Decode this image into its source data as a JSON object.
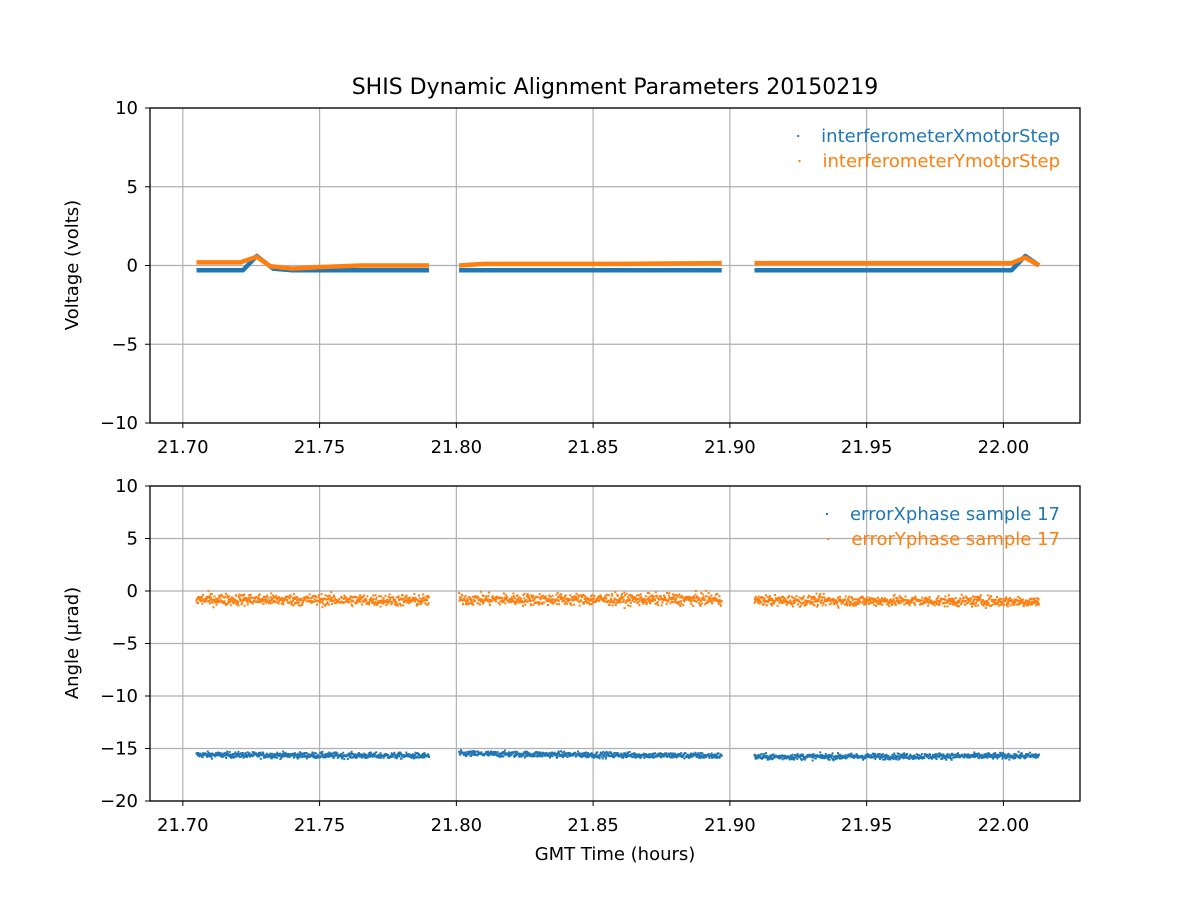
{
  "chart_data": {
    "title": "SHIS Dynamic Alignment Parameters 20150219",
    "subplots": [
      {
        "type": "scatter",
        "ylabel": "Voltage (volts)",
        "xlabel": "",
        "xlim": [
          21.688,
          22.028
        ],
        "ylim": [
          -10,
          10
        ],
        "xticks": [
          21.7,
          21.75,
          21.8,
          21.85,
          21.9,
          21.95,
          22.0
        ],
        "xtick_labels": [
          "21.70",
          "21.75",
          "21.80",
          "21.85",
          "21.90",
          "21.95",
          "22.00"
        ],
        "yticks": [
          10,
          5,
          0,
          -5,
          -10
        ],
        "ytick_labels": [
          "10",
          "5",
          "0",
          "−5",
          "−10"
        ],
        "grid": true,
        "legend_placement": "top-right",
        "series": [
          {
            "name": "interferometerXmotorStep",
            "color": "#1f77b4",
            "segments": [
              {
                "x": [
                  21.705,
                  21.722,
                  21.727,
                  21.733,
                  21.74,
                  21.79
                ],
                "y": [
                  -0.3,
                  -0.3,
                  0.6,
                  -0.2,
                  -0.3,
                  -0.3
                ]
              },
              {
                "x": [
                  21.801,
                  21.85,
                  21.897
                ],
                "y": [
                  -0.3,
                  -0.3,
                  -0.3
                ]
              },
              {
                "x": [
                  21.909,
                  21.95,
                  22.003,
                  22.008,
                  22.013
                ],
                "y": [
                  -0.3,
                  -0.3,
                  -0.3,
                  0.6,
                  0.0
                ]
              }
            ]
          },
          {
            "name": "interferometerYmotorStep",
            "color": "#ff7f0e",
            "segments": [
              {
                "x": [
                  21.705,
                  21.721,
                  21.727,
                  21.732,
                  21.74,
                  21.75,
                  21.765,
                  21.79
                ],
                "y": [
                  0.2,
                  0.2,
                  0.55,
                  -0.05,
                  -0.2,
                  -0.1,
                  0.0,
                  0.0
                ]
              },
              {
                "x": [
                  21.801,
                  21.81,
                  21.86,
                  21.897
                ],
                "y": [
                  0.0,
                  0.1,
                  0.1,
                  0.15
                ]
              },
              {
                "x": [
                  21.909,
                  21.95,
                  22.003,
                  22.008,
                  22.013
                ],
                "y": [
                  0.15,
                  0.15,
                  0.15,
                  0.5,
                  0.0
                ]
              }
            ]
          }
        ]
      },
      {
        "type": "scatter",
        "ylabel": "Angle (µrad)",
        "xlabel": "GMT Time (hours)",
        "xlim": [
          21.688,
          22.028
        ],
        "ylim": [
          -20,
          10
        ],
        "xticks": [
          21.7,
          21.75,
          21.8,
          21.85,
          21.9,
          21.95,
          22.0
        ],
        "xtick_labels": [
          "21.70",
          "21.75",
          "21.80",
          "21.85",
          "21.90",
          "21.95",
          "22.00"
        ],
        "yticks": [
          10,
          5,
          0,
          -5,
          -10,
          -15,
          -20
        ],
        "ytick_labels": [
          "10",
          "5",
          "0",
          "−5",
          "−10",
          "−15",
          "−20"
        ],
        "grid": true,
        "legend_placement": "top-right",
        "series": [
          {
            "name": "errorXphase sample 17",
            "color": "#1f77b4",
            "segments": [
              {
                "x": [
                  21.705,
                  21.79
                ],
                "y": [
                  -15.6,
                  -15.7
                ],
                "spread": 0.25
              },
              {
                "x": [
                  21.801,
                  21.897
                ],
                "y": [
                  -15.5,
                  -15.7
                ],
                "spread": 0.25
              },
              {
                "x": [
                  21.909,
                  22.013
                ],
                "y": [
                  -15.8,
                  -15.7
                ],
                "spread": 0.25
              }
            ]
          },
          {
            "name": "errorYphase sample 17",
            "color": "#ff7f0e",
            "segments": [
              {
                "x": [
                  21.705,
                  21.79
                ],
                "y": [
                  -0.8,
                  -0.9
                ],
                "spread": 0.5
              },
              {
                "x": [
                  21.801,
                  21.897
                ],
                "y": [
                  -0.8,
                  -0.8
                ],
                "spread": 0.5
              },
              {
                "x": [
                  21.909,
                  22.013
                ],
                "y": [
                  -0.9,
                  -1.0
                ],
                "spread": 0.45
              }
            ]
          }
        ]
      }
    ]
  }
}
